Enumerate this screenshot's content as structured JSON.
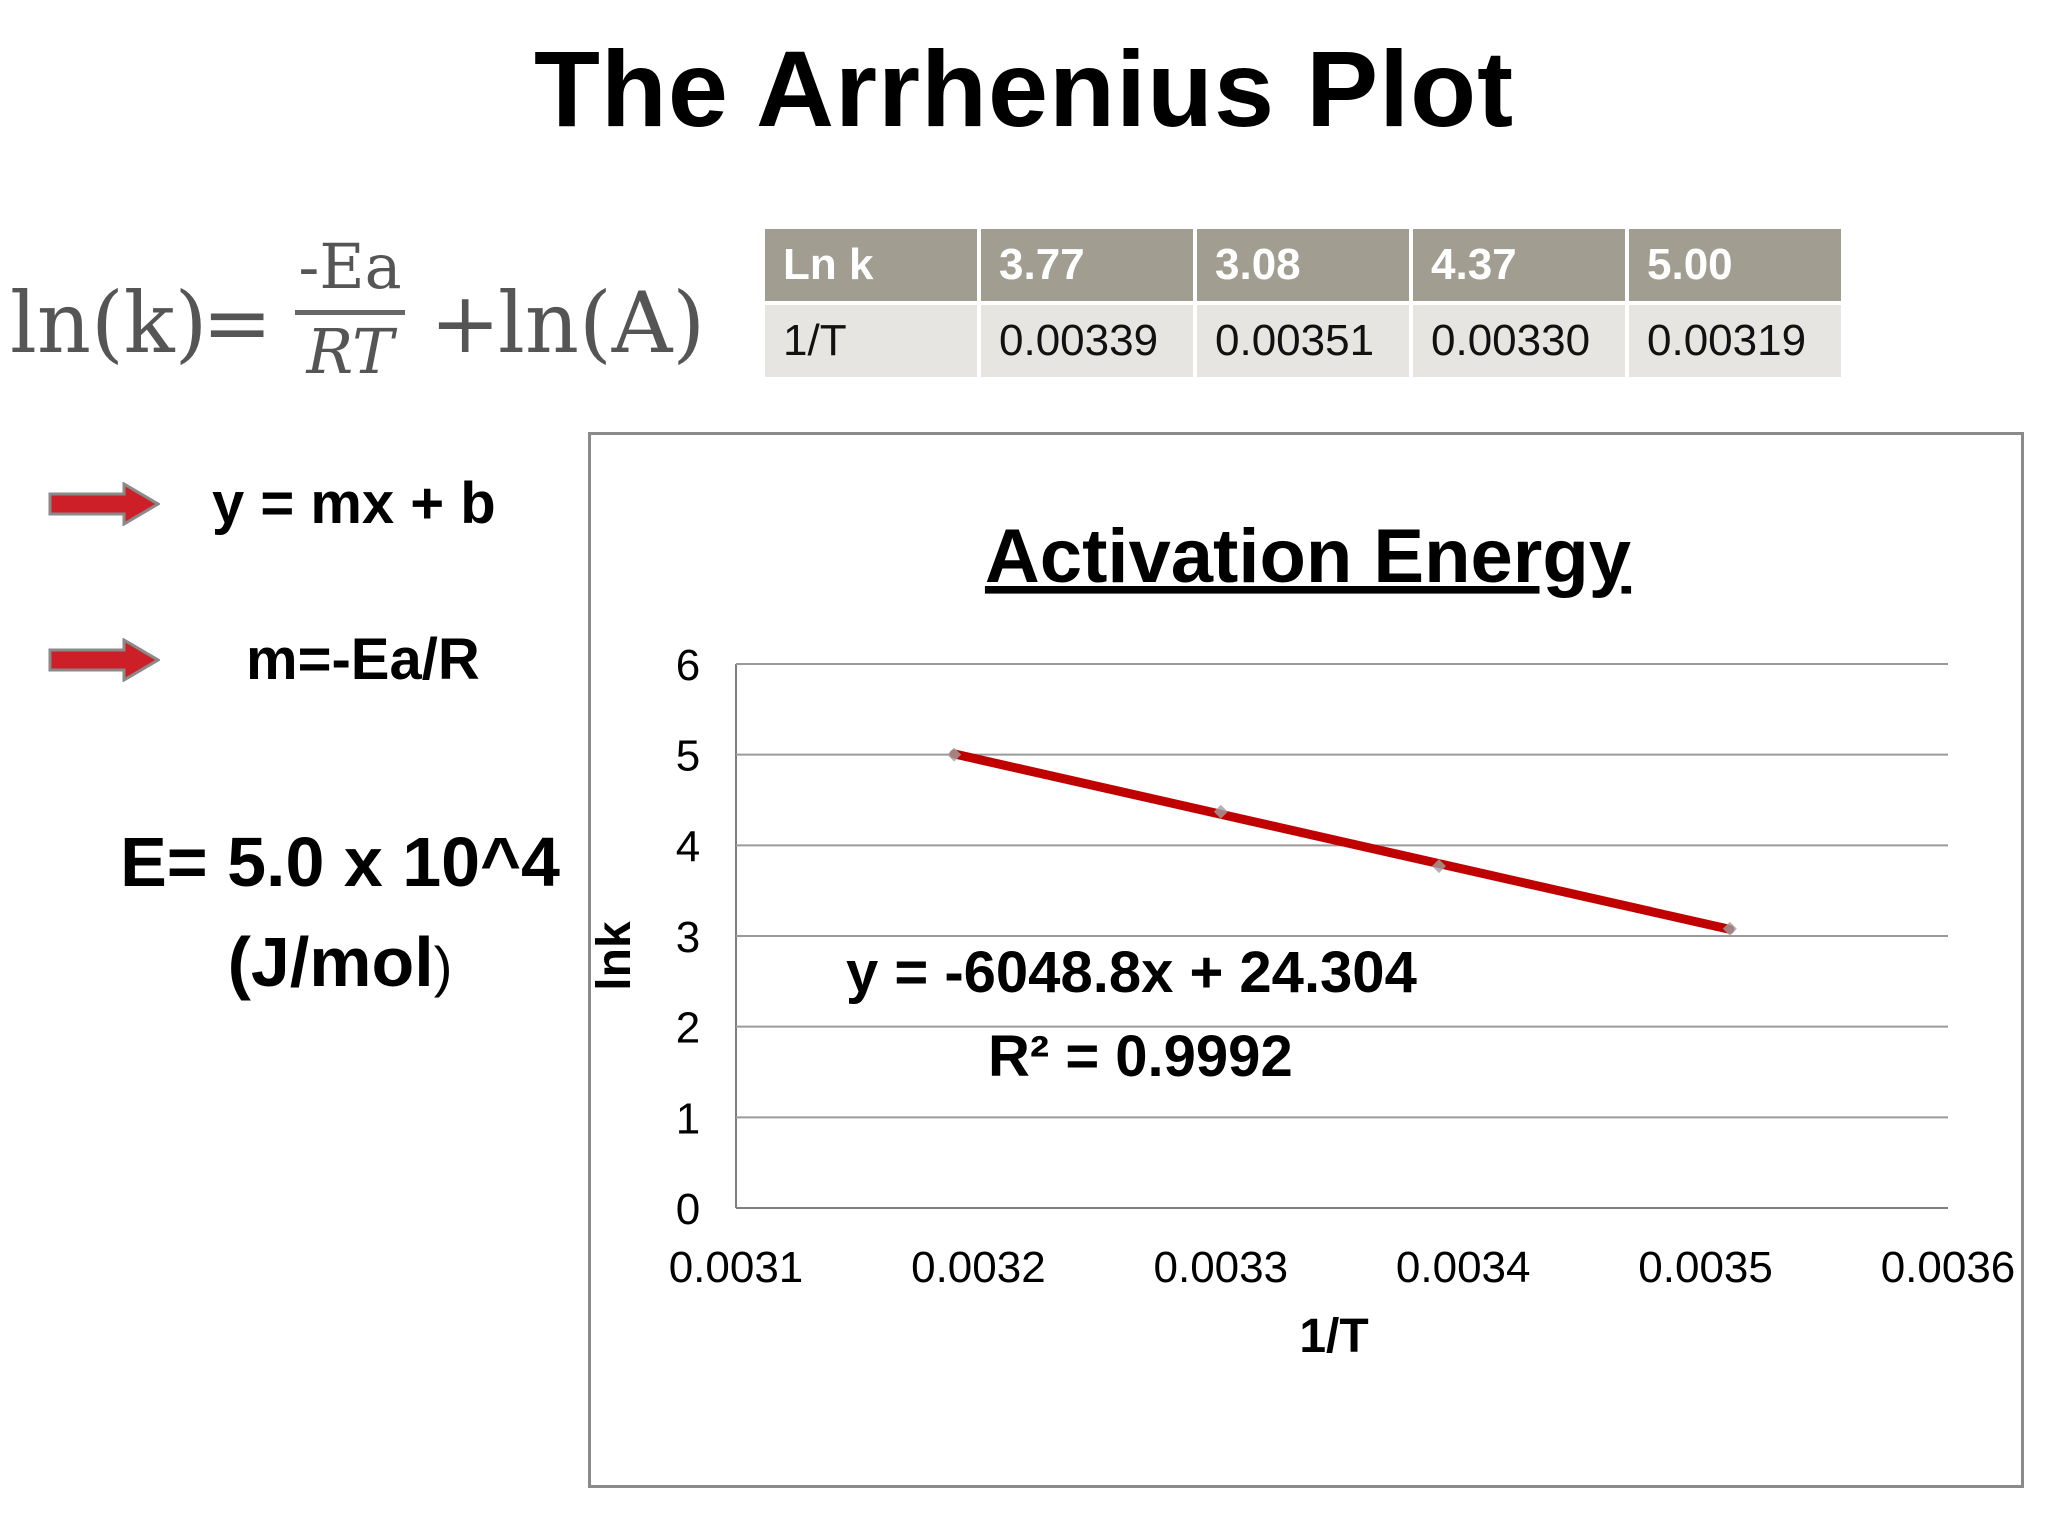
{
  "slide": {
    "title": "The Arrhenius Plot"
  },
  "formula": {
    "lhs": "ln(k)",
    "equals": "=",
    "numerator": "-Ea",
    "denominator": "RT",
    "plus": "+",
    "rhs": "ln(A)"
  },
  "table": {
    "header_label": "Ln k",
    "header_values": [
      "3.77",
      "3.08",
      "4.37",
      "5.00"
    ],
    "row_label": "1/T",
    "row_values": [
      "0.00339",
      "0.00351",
      "0.00330",
      "0.00319"
    ],
    "colors": {
      "header_bg": "#a29d91",
      "body_bg": "#e6e5e2"
    }
  },
  "notes": {
    "line_eq": "y = mx + b",
    "slope_eq": "m=-Ea/R",
    "energy_line1": "E= 5.0 x 10^4",
    "energy_line2": "(J/mol",
    "energy_paren": ")",
    "arrow_color": "#cc1f27"
  },
  "chart_data": {
    "type": "scatter",
    "title": "Activation Energy",
    "xlabel": "1/T",
    "ylabel": "lnk",
    "xlim": [
      0.0031,
      0.0036
    ],
    "ylim": [
      0,
      6
    ],
    "x_ticks": [
      0.0031,
      0.0032,
      0.0033,
      0.0034,
      0.0035,
      0.0036
    ],
    "x_tick_labels": [
      "0.0031",
      "0.0032",
      "0.0033",
      "0.0034",
      "0.0035",
      "0.0036"
    ],
    "y_ticks": [
      0,
      1,
      2,
      3,
      4,
      5,
      6
    ],
    "y_tick_labels": [
      "0",
      "1",
      "2",
      "3",
      "4",
      "5",
      "6"
    ],
    "grid": "horizontal",
    "series": [
      {
        "x": [
          0.00339,
          0.00351,
          0.0033,
          0.00319
        ],
        "y": [
          3.77,
          3.08,
          4.37,
          5.0
        ]
      }
    ],
    "trendline": {
      "slope": -6048.8,
      "intercept": 24.304,
      "x_range": [
        0.00319,
        0.00351
      ],
      "equation_label": "y = -6048.8x + 24.304",
      "r2_label": "R² = 0.9992",
      "color": "#c00000"
    },
    "marker_color": "#a0a0a0"
  }
}
